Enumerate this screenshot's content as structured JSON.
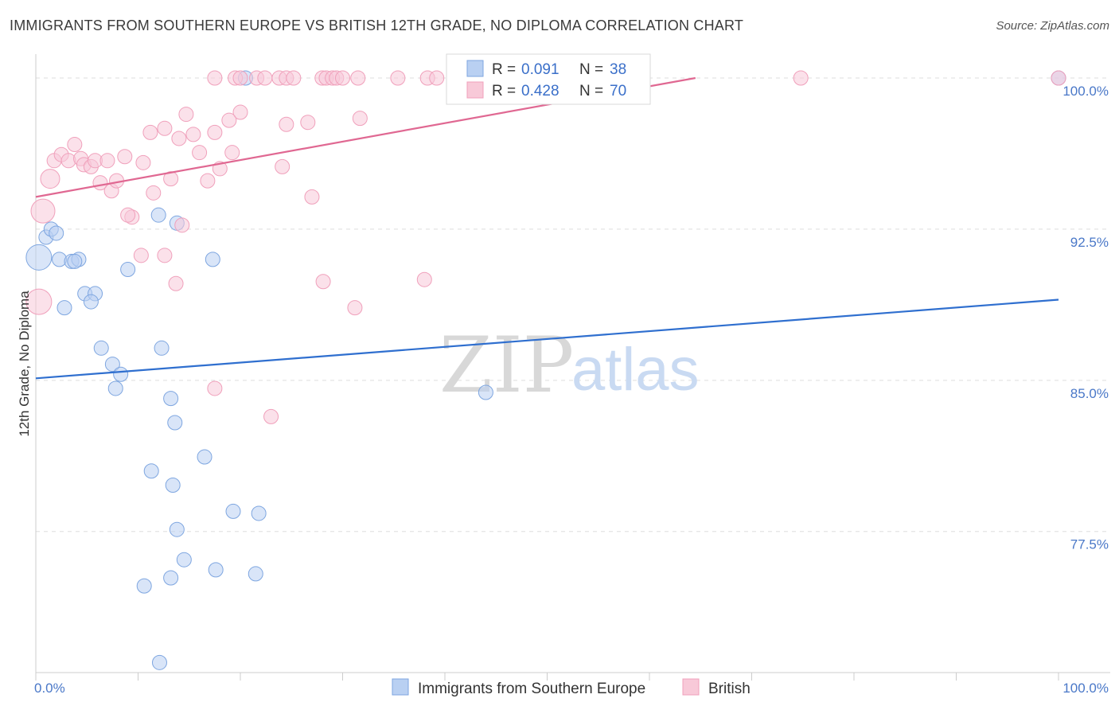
{
  "header": {
    "title": "IMMIGRANTS FROM SOUTHERN EUROPE VS BRITISH 12TH GRADE, NO DIPLOMA CORRELATION CHART",
    "source": "Source: ZipAtlas.com"
  },
  "watermark": {
    "zip": "ZIP",
    "atlas": "atlas"
  },
  "chart_data": {
    "type": "scatter",
    "title": "IMMIGRANTS FROM SOUTHERN EUROPE VS BRITISH 12TH GRADE, NO DIPLOMA CORRELATION CHART",
    "xlabel": "",
    "ylabel": "12th Grade, No Diploma",
    "xlim": [
      0,
      100
    ],
    "ylim": [
      70.5,
      101.5
    ],
    "x_tick_labels": [
      "0.0%",
      "100.0%"
    ],
    "y_ticks": [
      {
        "value": 100.0,
        "label": "100.0%"
      },
      {
        "value": 92.5,
        "label": "92.5%"
      },
      {
        "value": 85.0,
        "label": "85.0%"
      },
      {
        "value": 77.5,
        "label": "77.5%"
      }
    ],
    "grid": true,
    "legend_position": "top-center",
    "series": [
      {
        "name": "Immigrants from Southern Europe",
        "color": "#7ea6e0",
        "fill": "#b9d0f2",
        "line_color": "#2f6fcf",
        "R": "0.091",
        "N": "38",
        "trend": {
          "x": [
            0,
            100
          ],
          "y": [
            85.1,
            89.0
          ]
        },
        "points": [
          {
            "x": 1.0,
            "y": 92.1,
            "s": 9
          },
          {
            "x": 1.5,
            "y": 92.5,
            "s": 9
          },
          {
            "x": 2.0,
            "y": 92.3,
            "s": 9
          },
          {
            "x": 0.3,
            "y": 91.1,
            "s": 16
          },
          {
            "x": 2.3,
            "y": 91.0,
            "s": 9
          },
          {
            "x": 3.5,
            "y": 90.9,
            "s": 9
          },
          {
            "x": 4.2,
            "y": 91.0,
            "s": 9
          },
          {
            "x": 3.8,
            "y": 90.9,
            "s": 9
          },
          {
            "x": 4.8,
            "y": 89.3,
            "s": 9
          },
          {
            "x": 5.8,
            "y": 89.3,
            "s": 9
          },
          {
            "x": 5.4,
            "y": 88.9,
            "s": 9
          },
          {
            "x": 2.8,
            "y": 88.6,
            "s": 9
          },
          {
            "x": 6.4,
            "y": 86.6,
            "s": 9
          },
          {
            "x": 7.5,
            "y": 85.8,
            "s": 9
          },
          {
            "x": 8.3,
            "y": 85.3,
            "s": 9
          },
          {
            "x": 7.8,
            "y": 84.6,
            "s": 9
          },
          {
            "x": 12.0,
            "y": 93.2,
            "s": 9
          },
          {
            "x": 13.8,
            "y": 92.8,
            "s": 9
          },
          {
            "x": 9.0,
            "y": 90.5,
            "s": 9
          },
          {
            "x": 12.3,
            "y": 86.6,
            "s": 9
          },
          {
            "x": 17.3,
            "y": 91.0,
            "s": 9
          },
          {
            "x": 13.2,
            "y": 84.1,
            "s": 9
          },
          {
            "x": 13.6,
            "y": 82.9,
            "s": 9
          },
          {
            "x": 16.5,
            "y": 81.2,
            "s": 9
          },
          {
            "x": 11.3,
            "y": 80.5,
            "s": 9
          },
          {
            "x": 13.4,
            "y": 79.8,
            "s": 9
          },
          {
            "x": 19.3,
            "y": 78.5,
            "s": 9
          },
          {
            "x": 21.8,
            "y": 78.4,
            "s": 9
          },
          {
            "x": 13.8,
            "y": 77.6,
            "s": 9
          },
          {
            "x": 14.5,
            "y": 76.1,
            "s": 9
          },
          {
            "x": 17.6,
            "y": 75.6,
            "s": 9
          },
          {
            "x": 21.5,
            "y": 75.4,
            "s": 9
          },
          {
            "x": 13.2,
            "y": 75.2,
            "s": 9
          },
          {
            "x": 10.6,
            "y": 74.8,
            "s": 9
          },
          {
            "x": 12.1,
            "y": 71.0,
            "s": 9
          },
          {
            "x": 44.0,
            "y": 84.4,
            "s": 9
          },
          {
            "x": 20.5,
            "y": 100.0,
            "s": 9
          },
          {
            "x": 100.0,
            "y": 100.0,
            "s": 9
          }
        ]
      },
      {
        "name": "British",
        "color": "#f0a0bb",
        "fill": "#f8c9d8",
        "line_color": "#e06892",
        "R": "0.428",
        "N": "70",
        "trend": {
          "x": [
            0,
            64.5
          ],
          "y": [
            94.1,
            100.0
          ]
        },
        "points": [
          {
            "x": 0.7,
            "y": 93.4,
            "s": 15
          },
          {
            "x": 0.3,
            "y": 88.9,
            "s": 16
          },
          {
            "x": 1.4,
            "y": 95.0,
            "s": 12
          },
          {
            "x": 1.8,
            "y": 95.9,
            "s": 9
          },
          {
            "x": 2.5,
            "y": 96.2,
            "s": 9
          },
          {
            "x": 3.2,
            "y": 95.9,
            "s": 9
          },
          {
            "x": 3.8,
            "y": 96.7,
            "s": 9
          },
          {
            "x": 4.4,
            "y": 96.0,
            "s": 9
          },
          {
            "x": 4.7,
            "y": 95.7,
            "s": 9
          },
          {
            "x": 5.4,
            "y": 95.6,
            "s": 9
          },
          {
            "x": 5.8,
            "y": 95.9,
            "s": 9
          },
          {
            "x": 6.3,
            "y": 94.8,
            "s": 9
          },
          {
            "x": 7.0,
            "y": 95.9,
            "s": 9
          },
          {
            "x": 7.4,
            "y": 94.4,
            "s": 9
          },
          {
            "x": 7.9,
            "y": 94.9,
            "s": 9
          },
          {
            "x": 8.7,
            "y": 96.1,
            "s": 9
          },
          {
            "x": 9.4,
            "y": 93.1,
            "s": 9
          },
          {
            "x": 10.5,
            "y": 95.8,
            "s": 9
          },
          {
            "x": 11.5,
            "y": 94.3,
            "s": 9
          },
          {
            "x": 11.2,
            "y": 97.3,
            "s": 9
          },
          {
            "x": 12.6,
            "y": 97.5,
            "s": 9
          },
          {
            "x": 13.2,
            "y": 95.0,
            "s": 9
          },
          {
            "x": 14.0,
            "y": 97.0,
            "s": 9
          },
          {
            "x": 14.7,
            "y": 98.2,
            "s": 9
          },
          {
            "x": 15.4,
            "y": 97.2,
            "s": 9
          },
          {
            "x": 16.0,
            "y": 96.3,
            "s": 9
          },
          {
            "x": 16.8,
            "y": 94.9,
            "s": 9
          },
          {
            "x": 17.5,
            "y": 97.3,
            "s": 9
          },
          {
            "x": 18.0,
            "y": 95.5,
            "s": 9
          },
          {
            "x": 19.2,
            "y": 96.3,
            "s": 9
          },
          {
            "x": 9.0,
            "y": 93.2,
            "s": 9
          },
          {
            "x": 10.3,
            "y": 91.2,
            "s": 9
          },
          {
            "x": 12.6,
            "y": 91.2,
            "s": 9
          },
          {
            "x": 14.3,
            "y": 92.7,
            "s": 9
          },
          {
            "x": 13.7,
            "y": 89.8,
            "s": 9
          },
          {
            "x": 17.5,
            "y": 84.6,
            "s": 9
          },
          {
            "x": 23.0,
            "y": 83.2,
            "s": 9
          },
          {
            "x": 28.1,
            "y": 89.9,
            "s": 9
          },
          {
            "x": 31.2,
            "y": 88.6,
            "s": 9
          },
          {
            "x": 38.0,
            "y": 90.0,
            "s": 9
          },
          {
            "x": 27.0,
            "y": 94.1,
            "s": 9
          },
          {
            "x": 24.1,
            "y": 95.6,
            "s": 9
          },
          {
            "x": 24.5,
            "y": 97.7,
            "s": 9
          },
          {
            "x": 26.6,
            "y": 97.8,
            "s": 9
          },
          {
            "x": 31.7,
            "y": 98.0,
            "s": 9
          },
          {
            "x": 20.0,
            "y": 98.3,
            "s": 9
          },
          {
            "x": 18.9,
            "y": 97.9,
            "s": 9
          },
          {
            "x": 17.5,
            "y": 100.0,
            "s": 9
          },
          {
            "x": 19.5,
            "y": 100.0,
            "s": 9
          },
          {
            "x": 20.0,
            "y": 100.0,
            "s": 9
          },
          {
            "x": 21.6,
            "y": 100.0,
            "s": 9
          },
          {
            "x": 22.4,
            "y": 100.0,
            "s": 9
          },
          {
            "x": 23.8,
            "y": 100.0,
            "s": 9
          },
          {
            "x": 24.5,
            "y": 100.0,
            "s": 9
          },
          {
            "x": 25.2,
            "y": 100.0,
            "s": 9
          },
          {
            "x": 28.0,
            "y": 100.0,
            "s": 9
          },
          {
            "x": 28.4,
            "y": 100.0,
            "s": 9
          },
          {
            "x": 29.0,
            "y": 100.0,
            "s": 9
          },
          {
            "x": 29.4,
            "y": 100.0,
            "s": 9
          },
          {
            "x": 30.0,
            "y": 100.0,
            "s": 9
          },
          {
            "x": 31.5,
            "y": 100.0,
            "s": 9
          },
          {
            "x": 35.4,
            "y": 100.0,
            "s": 9
          },
          {
            "x": 38.3,
            "y": 100.0,
            "s": 9
          },
          {
            "x": 39.2,
            "y": 100.0,
            "s": 9
          },
          {
            "x": 41.9,
            "y": 100.0,
            "s": 9
          },
          {
            "x": 44.2,
            "y": 100.0,
            "s": 9
          },
          {
            "x": 47.3,
            "y": 100.0,
            "s": 9
          },
          {
            "x": 48.8,
            "y": 100.0,
            "s": 9
          },
          {
            "x": 74.8,
            "y": 100.0,
            "s": 9
          },
          {
            "x": 100.0,
            "y": 100.0,
            "s": 9
          }
        ]
      }
    ]
  },
  "legend": {
    "r_label": "R =",
    "n_label": "N =",
    "rows": [
      {
        "r": "0.091",
        "n": "38"
      },
      {
        "r": "0.428",
        "n": "70"
      }
    ]
  },
  "bottom_legend": [
    {
      "label": "Immigrants from Southern Europe"
    },
    {
      "label": "British"
    }
  ]
}
